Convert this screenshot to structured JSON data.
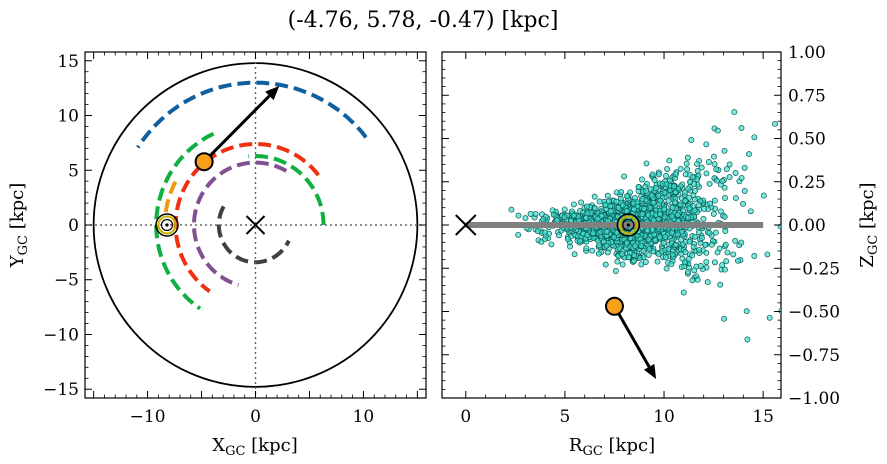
{
  "title": "(-4.76, 5.78, -0.47) [kpc]",
  "chart_data": [
    {
      "type": "scatter",
      "panel": "left",
      "xlabel": "X_GC [kpc]",
      "ylabel": "Y_GC [kpc]",
      "xlim": [
        -15.8,
        15.8
      ],
      "ylim": [
        -15.8,
        15.8
      ],
      "xticks": [
        -10,
        0,
        10
      ],
      "yticks": [
        -15,
        -10,
        -5,
        0,
        5,
        10,
        15
      ],
      "xtick_labels": [
        "−10",
        "0",
        "10"
      ],
      "ytick_labels": [
        "−15",
        "−10",
        "−5",
        "0",
        "5",
        "10",
        "15"
      ],
      "grid": false,
      "boundary_circle_radius": 15,
      "reference_lines": {
        "x": 0,
        "y": 0
      },
      "galactic_center": {
        "x": 0,
        "y": 0
      },
      "sun": {
        "x": -8.2,
        "y": 0
      },
      "object": {
        "x": -4.76,
        "y": 5.78
      },
      "velocity_arrow": {
        "from": [
          -4.76,
          5.78
        ],
        "to": [
          2.2,
          12.7
        ]
      },
      "arms": [
        {
          "color": "#1060a0",
          "radius": 13.0,
          "theta_deg": [
            38,
            147
          ]
        },
        {
          "color": "#10b040",
          "radius": 9.2,
          "theta_deg": [
            115,
            236
          ]
        },
        {
          "color": "#10b040",
          "radius": 6.3,
          "theta_deg": [
            0,
            96
          ]
        },
        {
          "color": "#f09810",
          "radius": 8.4,
          "theta_deg": [
            152,
            172
          ]
        },
        {
          "color": "#f03010",
          "radius": 7.4,
          "theta_deg": [
            38,
            235
          ]
        },
        {
          "color": "#805090",
          "radius": 5.7,
          "theta_deg": [
            60,
            254
          ]
        },
        {
          "color": "#404040",
          "radius": 3.4,
          "theta_deg": [
            150,
            335
          ]
        }
      ]
    },
    {
      "type": "scatter",
      "panel": "right",
      "xlabel": "R_GC [kpc]",
      "ylabel": "Z_GC [kpc]",
      "xlim": [
        -1.2,
        15.9
      ],
      "ylim": [
        -1.0,
        1.0
      ],
      "xticks": [
        0,
        5,
        10,
        15
      ],
      "yticks": [
        -1.0,
        -0.75,
        -0.5,
        -0.25,
        0.0,
        0.25,
        0.5,
        0.75,
        1.0
      ],
      "xtick_labels": [
        "0",
        "5",
        "10",
        "15"
      ],
      "ytick_labels": [
        "−1.00",
        "−0.75",
        "−0.50",
        "−0.25",
        "0.00",
        "0.25",
        "0.50",
        "0.75",
        "1.00"
      ],
      "grid": false,
      "disk_line": {
        "x": [
          0,
          15
        ],
        "y": 0
      },
      "galactic_center": {
        "x": 0,
        "y": 0
      },
      "sun": {
        "x": 8.2,
        "y": 0
      },
      "object": {
        "x": 7.5,
        "y": -0.47
      },
      "velocity_arrow": {
        "from": [
          7.5,
          -0.47
        ],
        "to": [
          9.6,
          -0.89
        ]
      },
      "stars_note": "approximate cloud of ~1500 cyan points centered near R=8.2, Z=0, spreading wider at larger R",
      "star_color": "#40e0d0"
    }
  ]
}
